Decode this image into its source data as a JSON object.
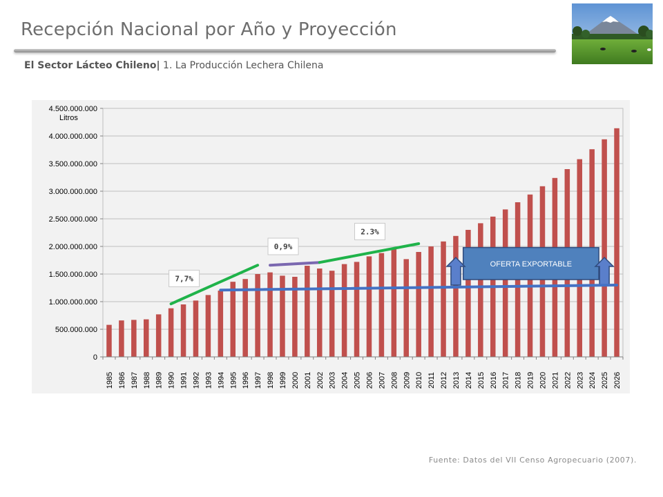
{
  "header": {
    "title": "Recepción Nacional por Año y Proyección",
    "subtitle_bold": "El Sector Lácteo Chileno|",
    "subtitle_rest": " 1. La Producción Lechera Chilena"
  },
  "colors": {
    "bar": "#c0504d",
    "growth_line": "#1fb34a",
    "flat_line": "#7b68b0",
    "base_line": "#4472c4",
    "arrow_fill": "#5a7fcb",
    "box_fill": "#4f81bd"
  },
  "footer": {
    "source": "Fuente: Datos del VII Censo Agropecuario (2007)."
  },
  "chart_data": {
    "type": "bar",
    "title": "",
    "ylabel": "Litros",
    "xlabel": "",
    "ylim": [
      0,
      4500000000
    ],
    "yticks": [
      {
        "value": 0,
        "label": "0"
      },
      {
        "value": 500000000,
        "label": "500.000.000"
      },
      {
        "value": 1000000000,
        "label": "1.000.000.000"
      },
      {
        "value": 1500000000,
        "label": "1.500.000.000"
      },
      {
        "value": 2000000000,
        "label": "2.000.000.000"
      },
      {
        "value": 2500000000,
        "label": "2.500.000.000"
      },
      {
        "value": 3000000000,
        "label": "3.000.000.000"
      },
      {
        "value": 3500000000,
        "label": "3.500.000.000"
      },
      {
        "value": 4000000000,
        "label": "4.000.000.000"
      },
      {
        "value": 4500000000,
        "label": "4.500.000.000"
      }
    ],
    "grid": true,
    "categories": [
      "1985",
      "1986",
      "1987",
      "1988",
      "1989",
      "1990",
      "1991",
      "1992",
      "1993",
      "1994",
      "1995",
      "1996",
      "1997",
      "1998",
      "1999",
      "2000",
      "2001",
      "2002",
      "2003",
      "2004",
      "2005",
      "2006",
      "2007",
      "2008",
      "2009",
      "2010",
      "2011",
      "2012",
      "2013",
      "2014",
      "2015",
      "2016",
      "2017",
      "2018",
      "2019",
      "2020",
      "2021",
      "2022",
      "2023",
      "2024",
      "2025",
      "2026"
    ],
    "values": [
      580000000,
      660000000,
      670000000,
      680000000,
      770000000,
      880000000,
      950000000,
      1020000000,
      1120000000,
      1200000000,
      1360000000,
      1410000000,
      1500000000,
      1530000000,
      1470000000,
      1450000000,
      1650000000,
      1600000000,
      1560000000,
      1680000000,
      1720000000,
      1820000000,
      1880000000,
      1960000000,
      1770000000,
      1900000000,
      2000000000,
      2090000000,
      2190000000,
      2300000000,
      2420000000,
      2540000000,
      2670000000,
      2800000000,
      2940000000,
      3090000000,
      3240000000,
      3400000000,
      3580000000,
      3760000000,
      3940000000,
      4140000000
    ],
    "annotations": {
      "growth_labels": [
        {
          "label": "7,7%",
          "x": "1990",
          "y": 1420000000
        },
        {
          "label": "0,9%",
          "x": "1998",
          "y": 2000000000
        },
        {
          "label": "2.3%",
          "x": "2005",
          "y": 2270000000
        }
      ],
      "trend_lines": [
        {
          "kind": "growth",
          "from": {
            "x": "1990",
            "y": 960000000
          },
          "to": {
            "x": "1997",
            "y": 1660000000
          }
        },
        {
          "kind": "flat",
          "from": {
            "x": "1998",
            "y": 1660000000
          },
          "to": {
            "x": "2002",
            "y": 1710000000
          }
        },
        {
          "kind": "growth",
          "from": {
            "x": "2002",
            "y": 1710000000
          },
          "to": {
            "x": "2010",
            "y": 2050000000
          }
        },
        {
          "kind": "base",
          "from": {
            "x": "1994",
            "y": 1210000000
          },
          "to": {
            "x": "2026",
            "y": 1300000000
          }
        }
      ],
      "box_label": "OFERTA EXPORTABLE",
      "box_range": {
        "x_from": "2014",
        "x_to": "2024",
        "y_top": 1980000000,
        "y_bottom": 1400000000
      },
      "arrows": [
        {
          "x": "2013",
          "y_from": 1300000000,
          "y_to": 1800000000
        },
        {
          "x": "2025",
          "y_from": 1300000000,
          "y_to": 1800000000
        }
      ]
    }
  }
}
